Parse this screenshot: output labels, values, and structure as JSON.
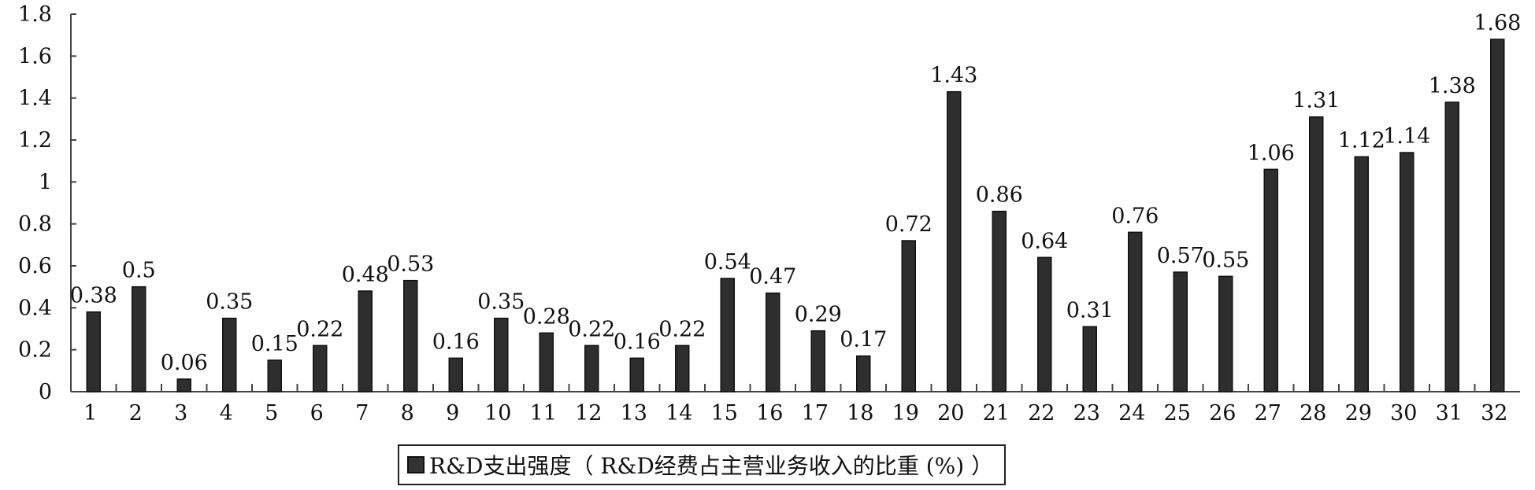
{
  "chart_data": {
    "type": "bar",
    "categories": [
      "1",
      "2",
      "3",
      "4",
      "5",
      "6",
      "7",
      "8",
      "9",
      "10",
      "11",
      "12",
      "13",
      "14",
      "15",
      "16",
      "17",
      "18",
      "19",
      "20",
      "21",
      "22",
      "23",
      "24",
      "25",
      "26",
      "27",
      "28",
      "29",
      "30",
      "31",
      "32"
    ],
    "series": [
      {
        "name": "R&D支出强度（ R&D经费占主营业务收入的比重 (%) ）",
        "values": [
          0.38,
          0.5,
          0.06,
          0.35,
          0.15,
          0.22,
          0.48,
          0.53,
          0.16,
          0.35,
          0.28,
          0.22,
          0.16,
          0.22,
          0.54,
          0.47,
          0.29,
          0.17,
          0.72,
          1.43,
          0.86,
          0.64,
          0.31,
          0.76,
          0.57,
          0.55,
          1.06,
          1.31,
          1.12,
          1.14,
          1.38,
          1.68
        ],
        "labels": [
          "0.38",
          "0.5",
          "0.06",
          "0.35",
          "0.15",
          "0.22",
          "0.48",
          "0.53",
          "0.16",
          "0.35",
          "0.28",
          "0.22",
          "0.16",
          "0.22",
          "0.54",
          "0.47",
          "0.29",
          "0.17",
          "0.72",
          "1.43",
          "0.86",
          "0.64",
          "0.31",
          "0.76",
          "0.57",
          "0.55",
          "1.06",
          "1.31",
          "1.12",
          "1.14",
          "1.38",
          "1.68"
        ]
      }
    ],
    "yticks": [
      "0",
      "0.2",
      "0.4",
      "0.6",
      "0.8",
      "1",
      "1.2",
      "1.4",
      "1.6",
      "1.8"
    ],
    "ylim": [
      0,
      1.8
    ],
    "grid": false,
    "legend_position": "bottom-center",
    "colors": {
      "bar": "#2e2e2e",
      "bar_edge": "#111111",
      "axis": "#444444",
      "text": "#111111"
    }
  }
}
